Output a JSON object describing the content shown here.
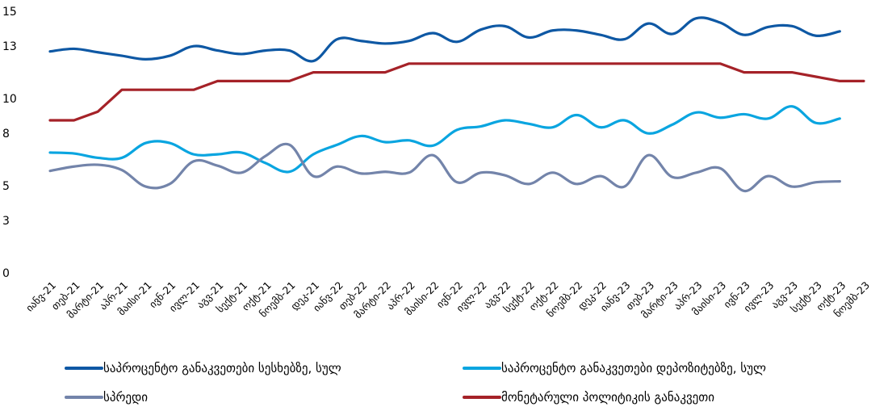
{
  "chart_data": {
    "type": "line",
    "title": "",
    "xlabel": "",
    "ylabel": "",
    "ylim": [
      0,
      15
    ],
    "yticks": [
      0,
      3,
      5,
      8,
      10,
      13,
      15
    ],
    "grid": false,
    "legend_position": "bottom",
    "categories": [
      "იანვ-21",
      "თებ-21",
      "მარტი-21",
      "აპრ-21",
      "მაისი-21",
      "ივნ-21",
      "ივლ-21",
      "აგვ-21",
      "სექტ-21",
      "ოქტ-21",
      "ნოემბ-21",
      "დეკ-21",
      "იანვ-22",
      "თებ-22",
      "მარტი-22",
      "აპრ-22",
      "მაისი-22",
      "ივნ-22",
      "ივლ-22",
      "აგვ-22",
      "სექტ-22",
      "ოქტ-22",
      "ნოემბ-22",
      "დეკ-22",
      "იანვ-23",
      "თებ-23",
      "მარტი-23",
      "აპრ-23",
      "მაისი-23",
      "ივნ-23",
      "ივლ-23",
      "აგვ-23",
      "სექტ-23",
      "ოქტ-23",
      "ნოემბ-23"
    ],
    "series": [
      {
        "name": "საპროცენტო განაკვეთები სესხებზე, სულ",
        "color": "#0E58A4",
        "values": [
          12.7,
          12.85,
          12.65,
          12.45,
          12.25,
          12.45,
          13.0,
          12.75,
          12.55,
          12.75,
          12.75,
          12.15,
          13.4,
          13.3,
          13.15,
          13.3,
          13.75,
          13.25,
          13.95,
          14.15,
          13.5,
          13.9,
          13.9,
          13.65,
          13.4,
          14.3,
          13.7,
          14.6,
          14.35,
          13.65,
          14.1,
          14.15,
          13.6,
          13.85,
          null
        ]
      },
      {
        "name": "საპროცენტო განაკვეთები დეპოზიტებზე, სულ",
        "color": "#0AA5E0",
        "values": [
          6.9,
          6.85,
          6.6,
          6.6,
          7.45,
          7.45,
          6.8,
          6.8,
          6.9,
          6.3,
          5.8,
          6.8,
          7.35,
          7.85,
          7.5,
          7.6,
          7.3,
          8.2,
          8.4,
          8.75,
          8.55,
          8.35,
          9.05,
          8.35,
          8.75,
          8.0,
          8.5,
          9.2,
          8.9,
          9.1,
          8.85,
          9.55,
          8.6,
          8.85,
          null
        ]
      },
      {
        "name": "სპრედი",
        "color": "#7384AA",
        "values": [
          5.85,
          6.1,
          6.2,
          5.9,
          4.95,
          5.1,
          6.4,
          6.15,
          5.75,
          6.7,
          7.35,
          5.55,
          6.1,
          5.7,
          5.8,
          5.75,
          6.75,
          5.2,
          5.75,
          5.6,
          5.1,
          5.75,
          5.1,
          5.55,
          4.95,
          6.75,
          5.5,
          5.75,
          6.0,
          4.7,
          5.55,
          4.95,
          5.2,
          5.25,
          null
        ]
      },
      {
        "name": "მონეტარული პოლიტიკის განაკვეთი",
        "color": "#A52228",
        "values": [
          8.75,
          8.75,
          9.25,
          10.5,
          10.5,
          10.5,
          10.5,
          11.0,
          11.0,
          11.0,
          11.0,
          11.5,
          11.5,
          11.5,
          11.5,
          12.0,
          12.0,
          12.0,
          12.0,
          12.0,
          12.0,
          12.0,
          12.0,
          12.0,
          12.0,
          12.0,
          12.0,
          12.0,
          12.0,
          11.5,
          11.5,
          11.5,
          11.25,
          11.0,
          11.0
        ]
      }
    ],
    "legend": [
      {
        "label": "საპროცენტო განაკვეთები სესხებზე, სულ",
        "color": "#0E58A4"
      },
      {
        "label": "საპროცენტო განაკვეთები დეპოზიტებზე, სულ",
        "color": "#0AA5E0"
      },
      {
        "label": "სპრედი",
        "color": "#7384AA"
      },
      {
        "label": "მონეტარული პოლიტიკის განაკვეთი",
        "color": "#A52228"
      }
    ]
  }
}
